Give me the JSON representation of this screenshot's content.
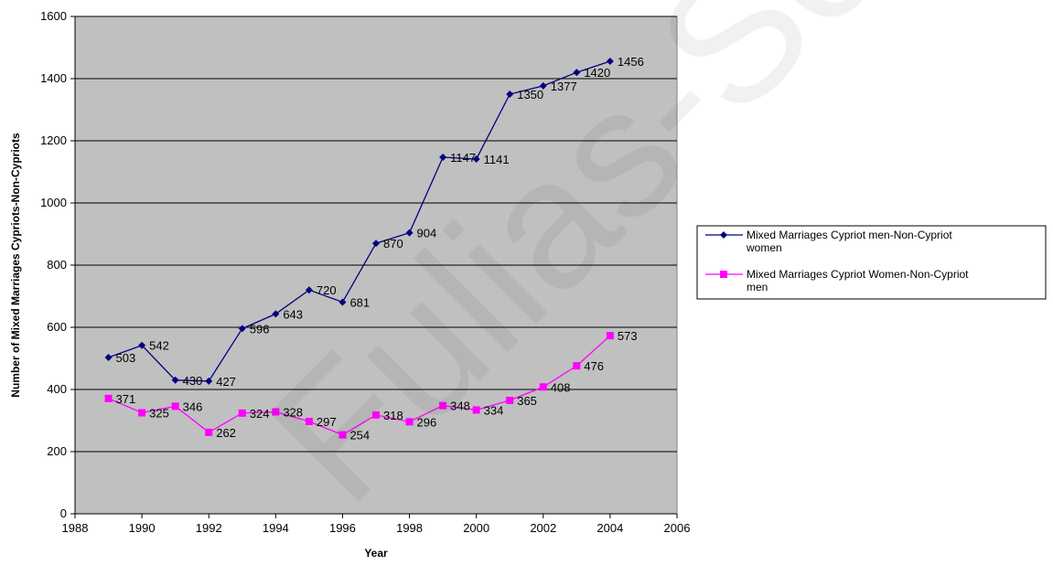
{
  "chart_data": {
    "type": "line",
    "xlabel": "Year",
    "ylabel": "Number of Mixed Marriages Cypriots-Non-Cypriots",
    "xlim": [
      1988,
      2006
    ],
    "ylim": [
      0,
      1600
    ],
    "x_ticks": [
      1988,
      1990,
      1992,
      1994,
      1996,
      1998,
      2000,
      2002,
      2004,
      2006
    ],
    "y_ticks": [
      0,
      200,
      400,
      600,
      800,
      1000,
      1200,
      1400,
      1600
    ],
    "grid": "horizontal",
    "legend_position": "right",
    "x": [
      1989,
      1990,
      1991,
      1992,
      1993,
      1994,
      1995,
      1996,
      1997,
      1998,
      1999,
      2000,
      2001,
      2002,
      2003,
      2004
    ],
    "series": [
      {
        "name": "Mixed Marriages Cypriot men-Non-Cypriot women",
        "legend_lines": [
          "Mixed Marriages Cypriot men-Non-Cypriot",
          "women"
        ],
        "color": "#000080",
        "marker": "diamond",
        "values": [
          503,
          542,
          430,
          427,
          596,
          643,
          720,
          681,
          870,
          904,
          1147,
          1141,
          1350,
          1377,
          1420,
          1456
        ]
      },
      {
        "name": "Mixed Marriages  Cypriot Women-Non-Cypriot men",
        "legend_lines": [
          "Mixed Marriages  Cypriot Women-Non-Cypriot",
          "men"
        ],
        "color": "#FF00FF",
        "marker": "square",
        "values": [
          371,
          325,
          346,
          262,
          324,
          328,
          297,
          254,
          318,
          296,
          348,
          334,
          365,
          408,
          476,
          573
        ]
      }
    ],
    "colors": {
      "plot_background": "#C0C0C0",
      "gridline": "#000000"
    },
    "watermark": "Fulias-Soc"
  }
}
